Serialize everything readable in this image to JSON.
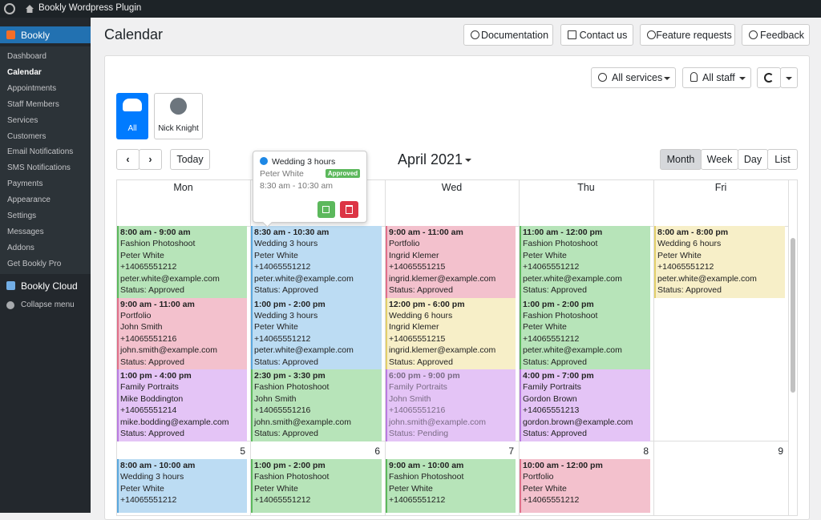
{
  "admin_bar": {
    "site": "Bookly Wordpress Plugin"
  },
  "sidebar": {
    "plugin": "Bookly",
    "items": [
      "Dashboard",
      "Calendar",
      "Appointments",
      "Staff Members",
      "Services",
      "Customers",
      "Email Notifications",
      "SMS Notifications",
      "Payments",
      "Appearance",
      "Settings",
      "Messages",
      "Addons",
      "Get Bookly Pro"
    ],
    "current": 1,
    "cloud": "Bookly Cloud",
    "collapse": "Collapse menu"
  },
  "header": {
    "title": "Calendar",
    "buttons": [
      "Documentation",
      "Contact us",
      "Feature requests",
      "Feedback"
    ]
  },
  "filters": {
    "services": "All services",
    "staff": "All staff"
  },
  "staff_tabs": [
    "All",
    "Nick Knight"
  ],
  "nav": {
    "today": "Today",
    "title": "April 2021",
    "views": [
      "Month",
      "Week",
      "Day",
      "List"
    ],
    "active_view": 0
  },
  "days": [
    "Mon",
    null,
    "Wed",
    "Thu",
    "Fri"
  ],
  "popover": {
    "title": "Wedding 3 hours",
    "staff": "Peter White",
    "badge": "Approved",
    "time": "8:30 am - 10:30 am"
  },
  "weeks": [
    {
      "dates": null,
      "days": [
        {
          "events": [
            {
              "color": "#b7e4b9",
              "border": "#5cb85c",
              "lines": [
                "8:00 am - 9:00 am",
                "Fashion Photoshoot",
                "Peter White",
                "+14065551212",
                "peter.white@example.com",
                "Status: Approved"
              ]
            },
            {
              "color": "#f3c1cd",
              "border": "#e0708a",
              "lines": [
                "9:00 am - 11:00 am",
                "Portfolio",
                "John Smith",
                "+14065551216",
                "john.smith@example.com",
                "Status: Approved"
              ]
            },
            {
              "color": "#e4c4f6",
              "border": "#b97ce0",
              "lines": [
                "1:00 pm - 4:00 pm",
                "Family Portraits",
                "Mike Boddington",
                "+14065551214",
                "mike.bodding@example.com",
                "Status: Approved"
              ]
            }
          ]
        },
        {
          "events": [
            {
              "color": "#bcdcf3",
              "border": "#5aa7dd",
              "lines": [
                "8:30 am - 10:30 am",
                "Wedding 3 hours",
                "Peter White",
                "+14065551212",
                "peter.white@example.com",
                "Status: Approved"
              ]
            },
            {
              "color": "#bcdcf3",
              "border": "#5aa7dd",
              "lines": [
                "1:00 pm - 2:00 pm",
                "Wedding 3 hours",
                "Peter White",
                "+14065551212",
                "peter.white@example.com",
                "Status: Approved"
              ]
            },
            {
              "color": "#b7e4b9",
              "border": "#5cb85c",
              "lines": [
                "2:30 pm - 3:30 pm",
                "Fashion Photoshoot",
                "John Smith",
                "+14065551216",
                "john.smith@example.com",
                "Status: Approved"
              ]
            }
          ]
        },
        {
          "events": [
            {
              "color": "#f3c1cd",
              "border": "#e0708a",
              "lines": [
                "9:00 am - 11:00 am",
                "Portfolio",
                "Ingrid Klemer",
                "+14065551215",
                "ingrid.klemer@example.com",
                "Status: Approved"
              ]
            },
            {
              "color": "#f7efc8",
              "border": "#e3cf6b",
              "lines": [
                "12:00 pm - 6:00 pm",
                "Wedding 6 hours",
                "Ingrid Klemer",
                "+14065551215",
                "ingrid.klemer@example.com",
                "Status: Approved"
              ]
            },
            {
              "color": "#e4c4f6",
              "border": "#b97ce0",
              "muted": true,
              "lines": [
                "6:00 pm - 9:00 pm",
                "Family Portraits",
                "John Smith",
                "+14065551216",
                "john.smith@example.com",
                "Status: Pending"
              ]
            }
          ]
        },
        {
          "events": [
            {
              "color": "#b7e4b9",
              "border": "#5cb85c",
              "lines": [
                "11:00 am - 12:00 pm",
                "Fashion Photoshoot",
                "Peter White",
                "+14065551212",
                "peter.white@example.com",
                "Status: Approved"
              ]
            },
            {
              "color": "#b7e4b9",
              "border": "#5cb85c",
              "lines": [
                "1:00 pm - 2:00 pm",
                "Fashion Photoshoot",
                "Peter White",
                "+14065551212",
                "peter.white@example.com",
                "Status: Approved"
              ]
            },
            {
              "color": "#e4c4f6",
              "border": "#b97ce0",
              "lines": [
                "4:00 pm - 7:00 pm",
                "Family Portraits",
                "Gordon Brown",
                "+14065551213",
                "gordon.brown@example.com",
                "Status: Approved"
              ]
            }
          ]
        },
        {
          "events": [
            {
              "color": "#f7efc8",
              "border": "#e3cf6b",
              "lines": [
                "8:00 am - 8:00 pm",
                "Wedding 6 hours",
                "Peter White",
                "+14065551212",
                "peter.white@example.com",
                "Status: Approved"
              ]
            }
          ]
        }
      ]
    },
    {
      "dates": [
        5,
        6,
        7,
        8,
        9
      ],
      "days": [
        {
          "events": [
            {
              "color": "#bcdcf3",
              "border": "#5aa7dd",
              "lines": [
                "8:00 am - 10:00 am",
                "Wedding 3 hours",
                "Peter White",
                "+14065551212"
              ]
            }
          ]
        },
        {
          "events": [
            {
              "color": "#b7e4b9",
              "border": "#5cb85c",
              "lines": [
                "1:00 pm - 2:00 pm",
                "Fashion Photoshoot",
                "Peter White",
                "+14065551212"
              ]
            }
          ]
        },
        {
          "events": [
            {
              "color": "#b7e4b9",
              "border": "#5cb85c",
              "lines": [
                "9:00 am - 10:00 am",
                "Fashion Photoshoot",
                "Peter White",
                "+14065551212"
              ]
            }
          ]
        },
        {
          "events": [
            {
              "color": "#f3c1cd",
              "border": "#e0708a",
              "lines": [
                "10:00 am - 12:00 pm",
                "Portfolio",
                "Peter White",
                "+14065551212"
              ]
            }
          ]
        },
        {
          "events": []
        }
      ]
    }
  ]
}
